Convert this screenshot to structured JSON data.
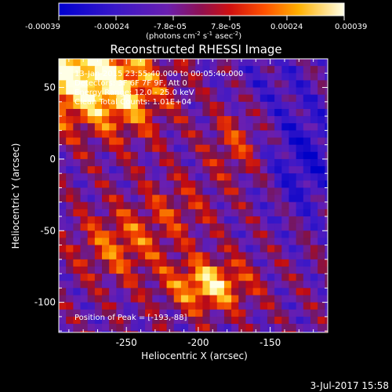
{
  "colorbar": {
    "ticks": [
      "-0.00039",
      "-0.00024",
      "-7.8e-05",
      "7.8e-05",
      "0.00024",
      "0.00039"
    ],
    "units_main": "(photons cm",
    "units_sup1": "-2",
    "units_mid": " s",
    "units_sup2": "-1",
    "units_mid2": " asec",
    "units_sup3": "-2",
    "units_end": ")"
  },
  "chart_data": {
    "type": "heatmap",
    "title": "Reconstructed RHESSI Image",
    "xlabel": "Heliocentric X (arcsec)",
    "ylabel": "Heliocentric Y (arcsec)",
    "xlim": [
      -297,
      -110
    ],
    "ylim": [
      -121,
      70
    ],
    "x_ticks": [
      -250,
      -200,
      -150
    ],
    "y_ticks": [
      50,
      0,
      -50,
      -100
    ],
    "color_range": [
      -0.00039,
      0.00039
    ],
    "colormap": "rainbow-hot (blue-purple-red-yellow-white)",
    "annotations": [
      "13-Jan-2015 23:55:40.000 to 00:05:40.000",
      "Detectors: 3F 6F 7F 9F, Att 0",
      "Energy Range: 12.0 - 25.0 keV",
      "Clean  Total Counts: 1.01E+04"
    ],
    "peak_label": "Position of Peak = [-193,-88]",
    "peak": [
      -193,
      -88
    ]
  },
  "footer": {
    "timestamp": "3-Jul-2017 15:58"
  }
}
